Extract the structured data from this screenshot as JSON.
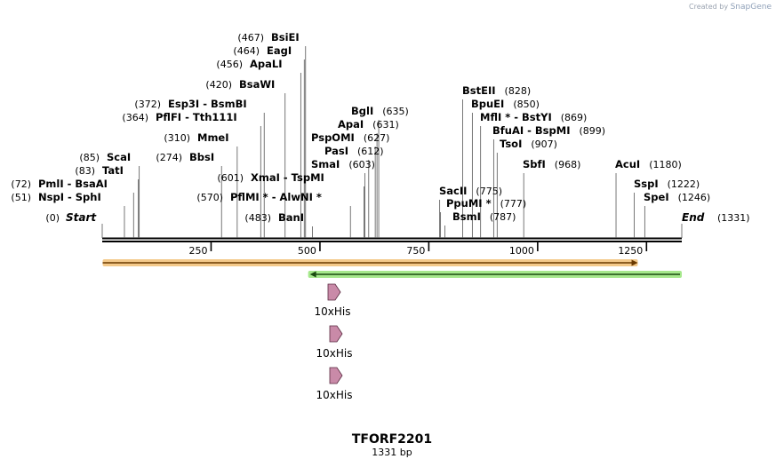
{
  "watermark": {
    "prefix": "Created by",
    "brand": "SnapGene"
  },
  "title": "TFORF2201",
  "length_label": "1331 bp",
  "sequence": {
    "length": 1331,
    "ticks": [
      250,
      500,
      750,
      1000,
      1250
    ]
  },
  "sites": [
    {
      "name": "BsiEI",
      "pos": 467
    },
    {
      "name": "EagI",
      "pos": 464
    },
    {
      "name": "ApaLI",
      "pos": 456
    },
    {
      "name": "BsaWI",
      "pos": 420
    },
    {
      "name": "Esp3I",
      "pos": 372,
      "alt": "BsmBI"
    },
    {
      "name": "PflFI",
      "pos": 364,
      "alt": "Tth111I"
    },
    {
      "name": "MmeI",
      "pos": 310
    },
    {
      "name": "ScaI",
      "pos": 85
    },
    {
      "name": "BbsI",
      "pos": 274
    },
    {
      "name": "TatI",
      "pos": 83
    },
    {
      "name": "PmlI",
      "pos": 72,
      "alt": "BsaAI"
    },
    {
      "name": "NspI",
      "pos": 51,
      "alt": "SphI"
    },
    {
      "name": "BglI",
      "pos": 635
    },
    {
      "name": "ApaI",
      "pos": 631
    },
    {
      "name": "PspOMI",
      "pos": 627
    },
    {
      "name": "PasI",
      "pos": 612
    },
    {
      "name": "SmaI",
      "pos": 603
    },
    {
      "name": "XmaI",
      "pos": 601,
      "alt": "TspMI"
    },
    {
      "name": "PflMI *",
      "pos": 570,
      "alt": "AlwNI *"
    },
    {
      "name": "BanI",
      "pos": 483
    },
    {
      "name": "BstEII",
      "pos": 828
    },
    {
      "name": "BpuEI",
      "pos": 850
    },
    {
      "name": "MflI *",
      "pos": 869,
      "alt": "BstYI"
    },
    {
      "name": "BfuAI",
      "pos": 899,
      "alt": "BspMI"
    },
    {
      "name": "TsoI",
      "pos": 907
    },
    {
      "name": "SbfI",
      "pos": 968
    },
    {
      "name": "AcuI",
      "pos": 1180
    },
    {
      "name": "SspI",
      "pos": 1222
    },
    {
      "name": "SpeI",
      "pos": 1246
    },
    {
      "name": "SacII",
      "pos": 775
    },
    {
      "name": "PpuMI *",
      "pos": 777
    },
    {
      "name": "BsmI",
      "pos": 787
    }
  ],
  "ends": {
    "start_label": "Start",
    "start_pos": 0,
    "end_label": "End",
    "end_pos": 1331
  },
  "features": [
    {
      "type": "forward-bar",
      "start": 1,
      "end": 1230
    },
    {
      "type": "reverse-bar",
      "start": 477,
      "end": 1331
    }
  ],
  "his_tags": [
    {
      "label": "10xHis"
    },
    {
      "label": "10xHis"
    },
    {
      "label": "10xHis"
    }
  ]
}
